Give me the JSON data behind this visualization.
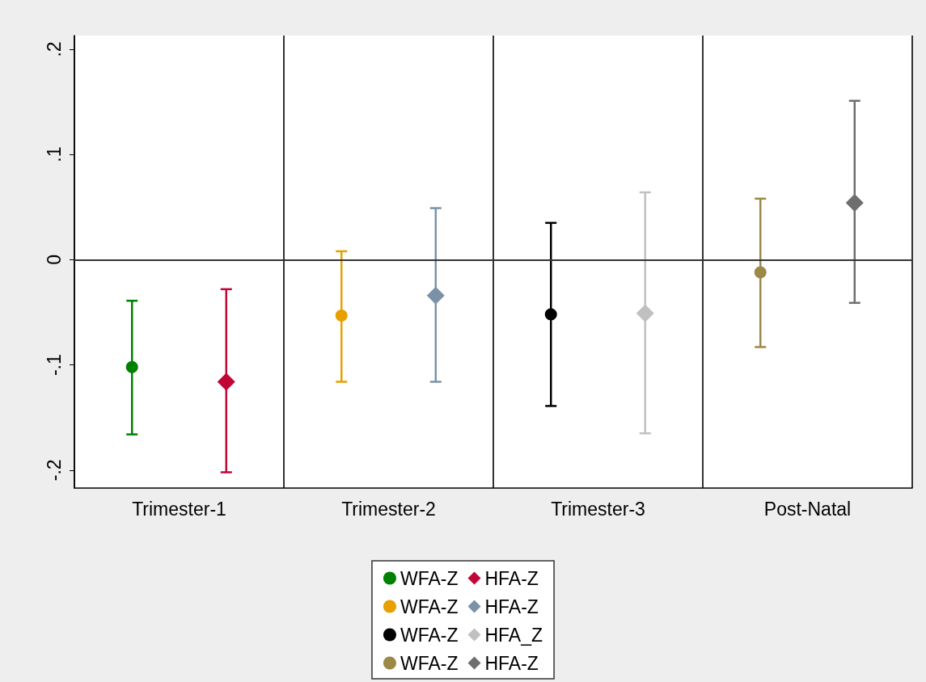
{
  "chart_data": {
    "type": "scatter",
    "categories": [
      "Trimester-1",
      "Trimester-2",
      "Trimester-3",
      "Post-Natal"
    ],
    "ylim": [
      -0.217,
      0.213
    ],
    "yticks": [
      {
        "value": -0.2,
        "label": "-.2"
      },
      {
        "value": -0.1,
        "label": "-.1"
      },
      {
        "value": 0,
        "label": "0"
      },
      {
        "value": 0.1,
        "label": ".1"
      },
      {
        "value": 0.2,
        "label": ".2"
      }
    ],
    "grid": "x",
    "legend": "bottom",
    "series": [
      {
        "name": "WFA-Z",
        "color": "#008000",
        "marker": "circle",
        "x": [
          "Trimester-1"
        ],
        "values": [
          -0.102
        ],
        "errors": [
          [
            -0.166,
            -0.039
          ]
        ]
      },
      {
        "name": "HFA-Z",
        "color": "#c10534",
        "marker": "diamond",
        "x": [
          "Trimester-1"
        ],
        "values": [
          -0.116
        ],
        "errors": [
          [
            -0.202,
            -0.028
          ]
        ]
      },
      {
        "name": "WFA-Z",
        "color": "#e8a000",
        "marker": "circle",
        "x": [
          "Trimester-2"
        ],
        "values": [
          -0.053
        ],
        "errors": [
          [
            -0.116,
            0.008
          ]
        ]
      },
      {
        "name": "HFA-Z",
        "color": "#7a92a8",
        "marker": "diamond",
        "x": [
          "Trimester-2"
        ],
        "values": [
          -0.034
        ],
        "errors": [
          [
            -0.116,
            0.049
          ]
        ]
      },
      {
        "name": "WFA-Z",
        "color": "#000000",
        "marker": "circle",
        "x": [
          "Trimester-3"
        ],
        "values": [
          -0.052
        ],
        "errors": [
          [
            -0.139,
            0.035
          ]
        ]
      },
      {
        "name": "HFA_Z",
        "color": "#c0c0c0",
        "marker": "diamond",
        "x": [
          "Trimester-3"
        ],
        "values": [
          -0.051
        ],
        "errors": [
          [
            -0.165,
            0.064
          ]
        ]
      },
      {
        "name": "WFA-Z",
        "color": "#9c8847",
        "marker": "circle",
        "x": [
          "Post-Natal"
        ],
        "values": [
          -0.012
        ],
        "errors": [
          [
            -0.083,
            0.058
          ]
        ]
      },
      {
        "name": "HFA-Z",
        "color": "#6e6e6e",
        "marker": "diamond",
        "x": [
          "Post-Natal"
        ],
        "values": [
          0.054
        ],
        "errors": [
          [
            -0.041,
            0.151
          ]
        ]
      }
    ],
    "ref_lines": [
      {
        "axis": "y",
        "value": 0,
        "color": "#333333"
      }
    ]
  }
}
